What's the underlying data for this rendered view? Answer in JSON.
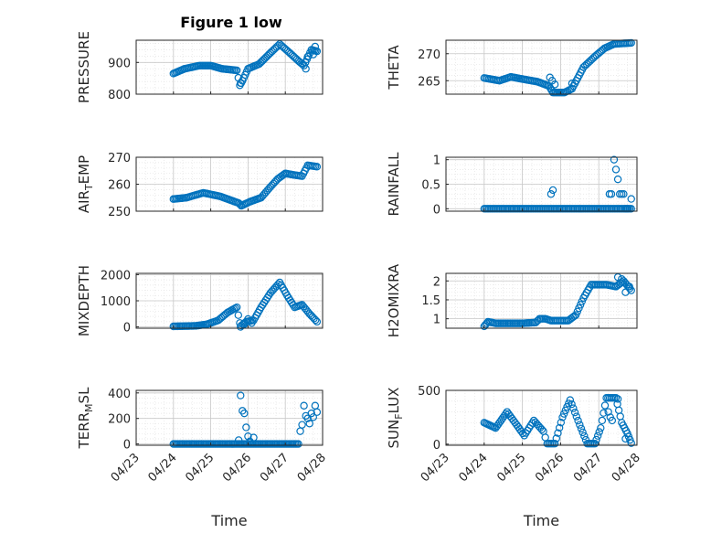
{
  "figure_title": "Figure 1 low",
  "colors": {
    "marker": "#0072BD",
    "axis": "#262626",
    "grid": "#c8c8c8",
    "minor_grid": "#e3e3e3"
  },
  "chart_data": [
    {
      "type": "scatter",
      "title": "Figure 1 low",
      "ylabel": "PRESSURE",
      "xlabel": "",
      "xlim": [
        "04/23",
        "04/28"
      ],
      "ylim": [
        800,
        970
      ],
      "yticks": [
        800,
        900
      ],
      "ytick_labels": [
        "800",
        "900"
      ],
      "x_date_labels": [
        "04/23",
        "04/24",
        "04/25",
        "04/26",
        "04/27",
        "04/28"
      ],
      "show_xtick_labels": false,
      "grid": true,
      "keypoints": [
        [
          0.0,
          865
        ],
        [
          0.3,
          880
        ],
        [
          0.7,
          890
        ],
        [
          1.0,
          890
        ],
        [
          1.3,
          880
        ],
        [
          1.7,
          875
        ],
        [
          1.78,
          828
        ],
        [
          1.85,
          842
        ],
        [
          2.0,
          880
        ],
        [
          2.3,
          895
        ],
        [
          2.6,
          930
        ],
        [
          2.85,
          958
        ],
        [
          3.1,
          932
        ],
        [
          3.35,
          905
        ],
        [
          3.5,
          890
        ],
        [
          3.7,
          940
        ],
        [
          3.85,
          935
        ]
      ],
      "extras": [
        [
          1.8,
          835
        ],
        [
          3.55,
          880
        ],
        [
          3.6,
          918
        ],
        [
          3.75,
          925
        ],
        [
          3.8,
          950
        ]
      ]
    },
    {
      "type": "scatter",
      "ylabel": "THETA",
      "xlabel": "",
      "xlim": [
        "04/23",
        "04/28"
      ],
      "ylim": [
        262.5,
        272.5
      ],
      "yticks": [
        265,
        270
      ],
      "ytick_labels": [
        "265",
        "270"
      ],
      "x_date_labels": [
        "04/23",
        "04/24",
        "04/25",
        "04/26",
        "04/27",
        "04/28"
      ],
      "show_xtick_labels": false,
      "grid": true,
      "keypoints": [
        [
          0.0,
          265.5
        ],
        [
          0.4,
          265.0
        ],
        [
          0.7,
          265.7
        ],
        [
          1.0,
          265.3
        ],
        [
          1.4,
          264.8
        ],
        [
          1.7,
          264.0
        ],
        [
          1.8,
          262.8
        ],
        [
          2.1,
          262.8
        ],
        [
          2.3,
          263.5
        ],
        [
          2.6,
          267.5
        ],
        [
          2.9,
          269.5
        ],
        [
          3.15,
          271.0
        ],
        [
          3.4,
          271.8
        ],
        [
          3.85,
          272.0
        ]
      ],
      "extras": [
        [
          1.72,
          265.6
        ],
        [
          1.78,
          265.0
        ],
        [
          1.85,
          264.3
        ],
        [
          2.3,
          264.5
        ]
      ]
    },
    {
      "type": "scatter",
      "ylabel": "AIR_TEMP",
      "xlabel": "",
      "xlim": [
        "04/23",
        "04/28"
      ],
      "ylim": [
        250,
        270
      ],
      "yticks": [
        250,
        260,
        270
      ],
      "ytick_labels": [
        "250",
        "260",
        "270"
      ],
      "x_date_labels": [
        "04/23",
        "04/24",
        "04/25",
        "04/26",
        "04/27",
        "04/28"
      ],
      "show_xtick_labels": false,
      "grid": true,
      "keypoints": [
        [
          0.0,
          254.5
        ],
        [
          0.35,
          255.0
        ],
        [
          0.8,
          256.8
        ],
        [
          1.25,
          255.5
        ],
        [
          1.75,
          253.0
        ],
        [
          1.82,
          252.0
        ],
        [
          2.05,
          253.5
        ],
        [
          2.35,
          255.0
        ],
        [
          2.6,
          259.0
        ],
        [
          2.8,
          262.0
        ],
        [
          3.0,
          264.0
        ],
        [
          3.2,
          263.5
        ],
        [
          3.45,
          263.0
        ],
        [
          3.6,
          267.0
        ],
        [
          3.85,
          266.5
        ]
      ],
      "extras": []
    },
    {
      "type": "scatter",
      "ylabel": "RAINFALL",
      "xlabel": "",
      "xlim": [
        "04/23",
        "04/28"
      ],
      "ylim": [
        -0.05,
        1.05
      ],
      "yticks": [
        0,
        0.5,
        1
      ],
      "ytick_labels": [
        "0",
        "0.5",
        "1"
      ],
      "x_date_labels": [
        "04/23",
        "04/24",
        "04/25",
        "04/26",
        "04/27",
        "04/28"
      ],
      "show_xtick_labels": false,
      "grid": true,
      "keypoints": [
        [
          0.0,
          0
        ],
        [
          3.85,
          0
        ]
      ],
      "extras": [
        [
          1.75,
          0.3
        ],
        [
          1.8,
          0.38
        ],
        [
          3.28,
          0.3
        ],
        [
          3.33,
          0.3
        ],
        [
          3.4,
          1.0
        ],
        [
          3.45,
          0.8
        ],
        [
          3.5,
          0.6
        ],
        [
          3.55,
          0.3
        ],
        [
          3.6,
          0.3
        ],
        [
          3.65,
          0.3
        ],
        [
          3.7,
          0.0
        ],
        [
          3.75,
          0.0
        ],
        [
          3.85,
          0.2
        ]
      ]
    },
    {
      "type": "scatter",
      "ylabel": "MIXDEPTH",
      "xlabel": "",
      "xlim": [
        "04/23",
        "04/28"
      ],
      "ylim": [
        -50,
        2050
      ],
      "yticks": [
        0,
        1000,
        2000
      ],
      "ytick_labels": [
        "0",
        "1000",
        "2000"
      ],
      "x_date_labels": [
        "04/23",
        "04/24",
        "04/25",
        "04/26",
        "04/27",
        "04/28"
      ],
      "show_xtick_labels": false,
      "grid": true,
      "keypoints": [
        [
          0.0,
          20
        ],
        [
          0.6,
          40
        ],
        [
          0.9,
          100
        ],
        [
          1.2,
          250
        ],
        [
          1.45,
          550
        ],
        [
          1.7,
          750
        ],
        [
          1.78,
          150
        ],
        [
          1.82,
          50
        ],
        [
          1.95,
          200
        ],
        [
          2.15,
          250
        ],
        [
          2.35,
          750
        ],
        [
          2.6,
          1300
        ],
        [
          2.85,
          1700
        ],
        [
          3.05,
          1200
        ],
        [
          3.25,
          750
        ],
        [
          3.45,
          850
        ],
        [
          3.65,
          500
        ],
        [
          3.85,
          200
        ]
      ],
      "extras": [
        [
          1.8,
          0
        ],
        [
          1.9,
          100
        ],
        [
          2.0,
          300
        ],
        [
          2.1,
          150
        ]
      ]
    },
    {
      "type": "scatter",
      "ylabel": "H2OMIXRA",
      "xlabel": "",
      "xlim": [
        "04/23",
        "04/28"
      ],
      "ylim": [
        0.75,
        2.2
      ],
      "yticks": [
        1,
        1.5,
        2
      ],
      "ytick_labels": [
        "1",
        "1.5",
        "2"
      ],
      "x_date_labels": [
        "04/23",
        "04/24",
        "04/25",
        "04/26",
        "04/27",
        "04/28"
      ],
      "show_xtick_labels": false,
      "grid": true,
      "keypoints": [
        [
          0.0,
          0.8
        ],
        [
          0.1,
          0.92
        ],
        [
          0.3,
          0.88
        ],
        [
          1.0,
          0.88
        ],
        [
          1.35,
          0.9
        ],
        [
          1.45,
          1.0
        ],
        [
          1.6,
          1.0
        ],
        [
          1.75,
          0.95
        ],
        [
          2.2,
          0.95
        ],
        [
          2.4,
          1.1
        ],
        [
          2.6,
          1.55
        ],
        [
          2.8,
          1.9
        ],
        [
          3.2,
          1.9
        ],
        [
          3.45,
          1.85
        ],
        [
          3.65,
          2.0
        ],
        [
          3.85,
          1.75
        ]
      ],
      "extras": [
        [
          3.5,
          2.1
        ],
        [
          3.6,
          2.05
        ],
        [
          3.7,
          1.7
        ],
        [
          3.8,
          1.85
        ]
      ]
    },
    {
      "type": "scatter",
      "ylabel": "TERR_MSL",
      "xlabel": "Time",
      "xlim": [
        "04/23",
        "04/28"
      ],
      "ylim": [
        -10,
        420
      ],
      "yticks": [
        0,
        200,
        400
      ],
      "ytick_labels": [
        "0",
        "200",
        "400"
      ],
      "x_date_labels": [
        "04/23",
        "04/24",
        "04/25",
        "04/26",
        "04/27",
        "04/28"
      ],
      "show_xtick_labels": true,
      "grid": true,
      "keypoints": [
        [
          0.0,
          0
        ],
        [
          3.35,
          0
        ]
      ],
      "extras": [
        [
          1.75,
          30
        ],
        [
          1.8,
          380
        ],
        [
          1.85,
          260
        ],
        [
          1.9,
          240
        ],
        [
          1.95,
          130
        ],
        [
          2.0,
          60
        ],
        [
          2.05,
          20
        ],
        [
          2.15,
          50
        ],
        [
          3.4,
          100
        ],
        [
          3.45,
          150
        ],
        [
          3.5,
          300
        ],
        [
          3.55,
          220
        ],
        [
          3.6,
          200
        ],
        [
          3.65,
          160
        ],
        [
          3.7,
          240
        ],
        [
          3.75,
          210
        ],
        [
          3.8,
          300
        ],
        [
          3.85,
          250
        ]
      ]
    },
    {
      "type": "scatter",
      "ylabel": "SUN_FLUX",
      "xlabel": "Time",
      "xlim": [
        "04/23",
        "04/28"
      ],
      "ylim": [
        -10,
        500
      ],
      "yticks": [
        0,
        500
      ],
      "ytick_labels": [
        "0",
        "500"
      ],
      "x_date_labels": [
        "04/23",
        "04/24",
        "04/25",
        "04/26",
        "04/27",
        "04/28"
      ],
      "show_xtick_labels": true,
      "grid": true,
      "keypoints": [
        [
          0.0,
          200
        ],
        [
          0.3,
          150
        ],
        [
          0.6,
          300
        ],
        [
          0.85,
          180
        ],
        [
          1.05,
          80
        ],
        [
          1.3,
          220
        ],
        [
          1.55,
          120
        ],
        [
          1.65,
          5
        ],
        [
          1.85,
          5
        ],
        [
          2.05,
          250
        ],
        [
          2.25,
          410
        ],
        [
          2.5,
          180
        ],
        [
          2.7,
          5
        ],
        [
          2.9,
          5
        ],
        [
          3.05,
          150
        ],
        [
          3.2,
          430
        ],
        [
          3.45,
          430
        ],
        [
          3.6,
          200
        ],
        [
          3.75,
          100
        ],
        [
          3.85,
          10
        ]
      ],
      "extras": [
        [
          3.25,
          300
        ],
        [
          3.3,
          250
        ],
        [
          3.35,
          220
        ],
        [
          3.5,
          420
        ],
        [
          3.7,
          50
        ]
      ]
    }
  ]
}
